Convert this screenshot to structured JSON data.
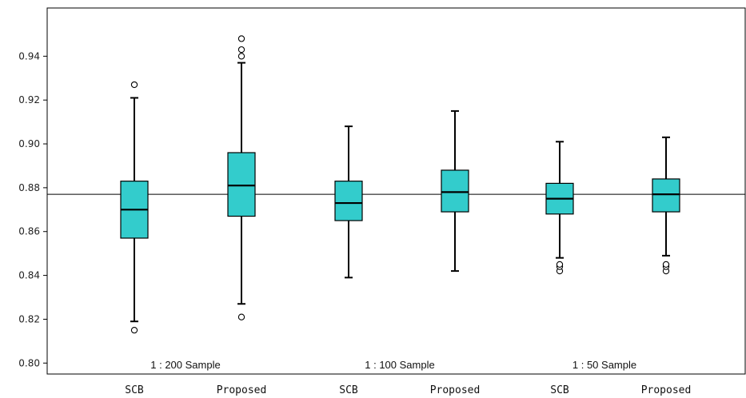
{
  "chart_data": {
    "type": "box",
    "title": "",
    "xlabel": "",
    "ylabel": "",
    "ylim": [
      0.795,
      0.962
    ],
    "yticks": [
      0.8,
      0.82,
      0.84,
      0.86,
      0.88,
      0.9,
      0.92,
      0.94
    ],
    "ytick_labels": [
      "0.80",
      "0.82",
      "0.84",
      "0.86",
      "0.88",
      "0.90",
      "0.92",
      "0.94"
    ],
    "grid": false,
    "reference_line": 0.877,
    "box_color": "#33CCCC",
    "groups": [
      "1 : 200 Sample",
      "1 : 100 Sample",
      "1 : 50 Sample"
    ],
    "categories": [
      "SCB",
      "Proposed",
      "SCB",
      "Proposed",
      "SCB",
      "Proposed"
    ],
    "boxes": [
      {
        "category": "SCB",
        "group": 0,
        "whisker_low": 0.819,
        "q1": 0.857,
        "median": 0.87,
        "q3": 0.883,
        "whisker_high": 0.921,
        "outliers": [
          0.815,
          0.927
        ]
      },
      {
        "category": "Proposed",
        "group": 0,
        "whisker_low": 0.827,
        "q1": 0.867,
        "median": 0.881,
        "q3": 0.896,
        "whisker_high": 0.937,
        "outliers": [
          0.821,
          0.94,
          0.943,
          0.948
        ]
      },
      {
        "category": "SCB",
        "group": 1,
        "whisker_low": 0.839,
        "q1": 0.865,
        "median": 0.873,
        "q3": 0.883,
        "whisker_high": 0.908,
        "outliers": []
      },
      {
        "category": "Proposed",
        "group": 1,
        "whisker_low": 0.842,
        "q1": 0.869,
        "median": 0.878,
        "q3": 0.888,
        "whisker_high": 0.915,
        "outliers": []
      },
      {
        "category": "SCB",
        "group": 2,
        "whisker_low": 0.848,
        "q1": 0.868,
        "median": 0.875,
        "q3": 0.882,
        "whisker_high": 0.901,
        "outliers": [
          0.842,
          0.844,
          0.845
        ]
      },
      {
        "category": "Proposed",
        "group": 2,
        "whisker_low": 0.849,
        "q1": 0.869,
        "median": 0.877,
        "q3": 0.884,
        "whisker_high": 0.903,
        "outliers": [
          0.842,
          0.844,
          0.845
        ]
      }
    ]
  }
}
